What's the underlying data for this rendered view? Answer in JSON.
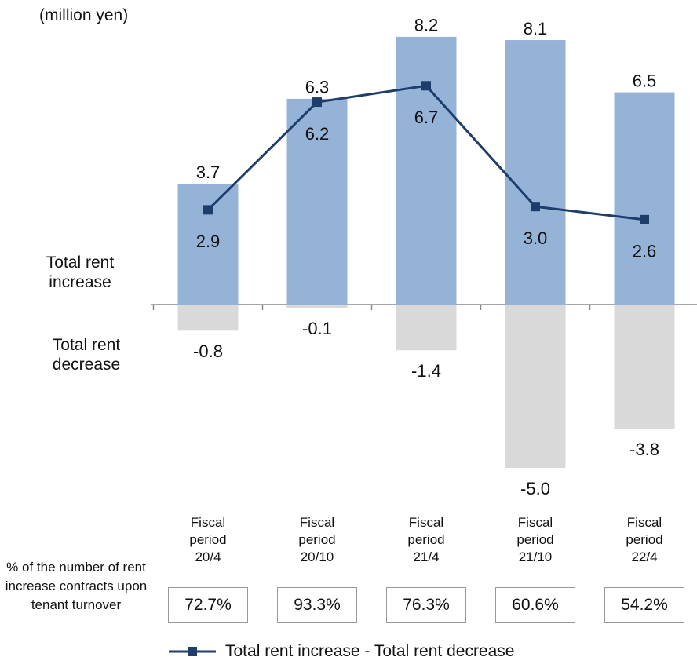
{
  "chart_data": {
    "type": "bar",
    "unit": "(million yen)",
    "categories": [
      "Fiscal period 20/4",
      "Fiscal period 20/10",
      "Fiscal period 21/4",
      "Fiscal period 21/10",
      "Fiscal period 22/4"
    ],
    "series": [
      {
        "name": "Total rent increase",
        "type": "bar",
        "color": "#95b3d7",
        "values": [
          3.7,
          6.3,
          8.2,
          8.1,
          6.5
        ],
        "value_labels": [
          "3.7",
          "6.3",
          "8.2",
          "8.1",
          "6.5"
        ]
      },
      {
        "name": "Total rent decrease",
        "type": "bar",
        "color": "#d9d9d9",
        "values": [
          -0.8,
          -0.1,
          -1.4,
          -5,
          -3.8
        ],
        "value_labels": [
          "-0.8",
          "-0.1",
          "-1.4",
          "-5.0",
          "-3.8"
        ]
      },
      {
        "name": "Total rent increase - Total rent decrease",
        "type": "line",
        "color": "#1f3d6b",
        "values": [
          2.9,
          6.2,
          6.7,
          3,
          2.6
        ],
        "value_labels": [
          "2.9",
          "6.2",
          "6.7",
          "3.0",
          "2.6"
        ]
      }
    ],
    "turnover_rate": {
      "label": "% of the number of rent increase contracts upon tenant turnover",
      "values": [
        72.7,
        93.3,
        76.3,
        60.6,
        54.2
      ],
      "value_labels": [
        "72.7%",
        "93.3%",
        "76.3%",
        "60.6%",
        "54.2%"
      ]
    }
  }
}
